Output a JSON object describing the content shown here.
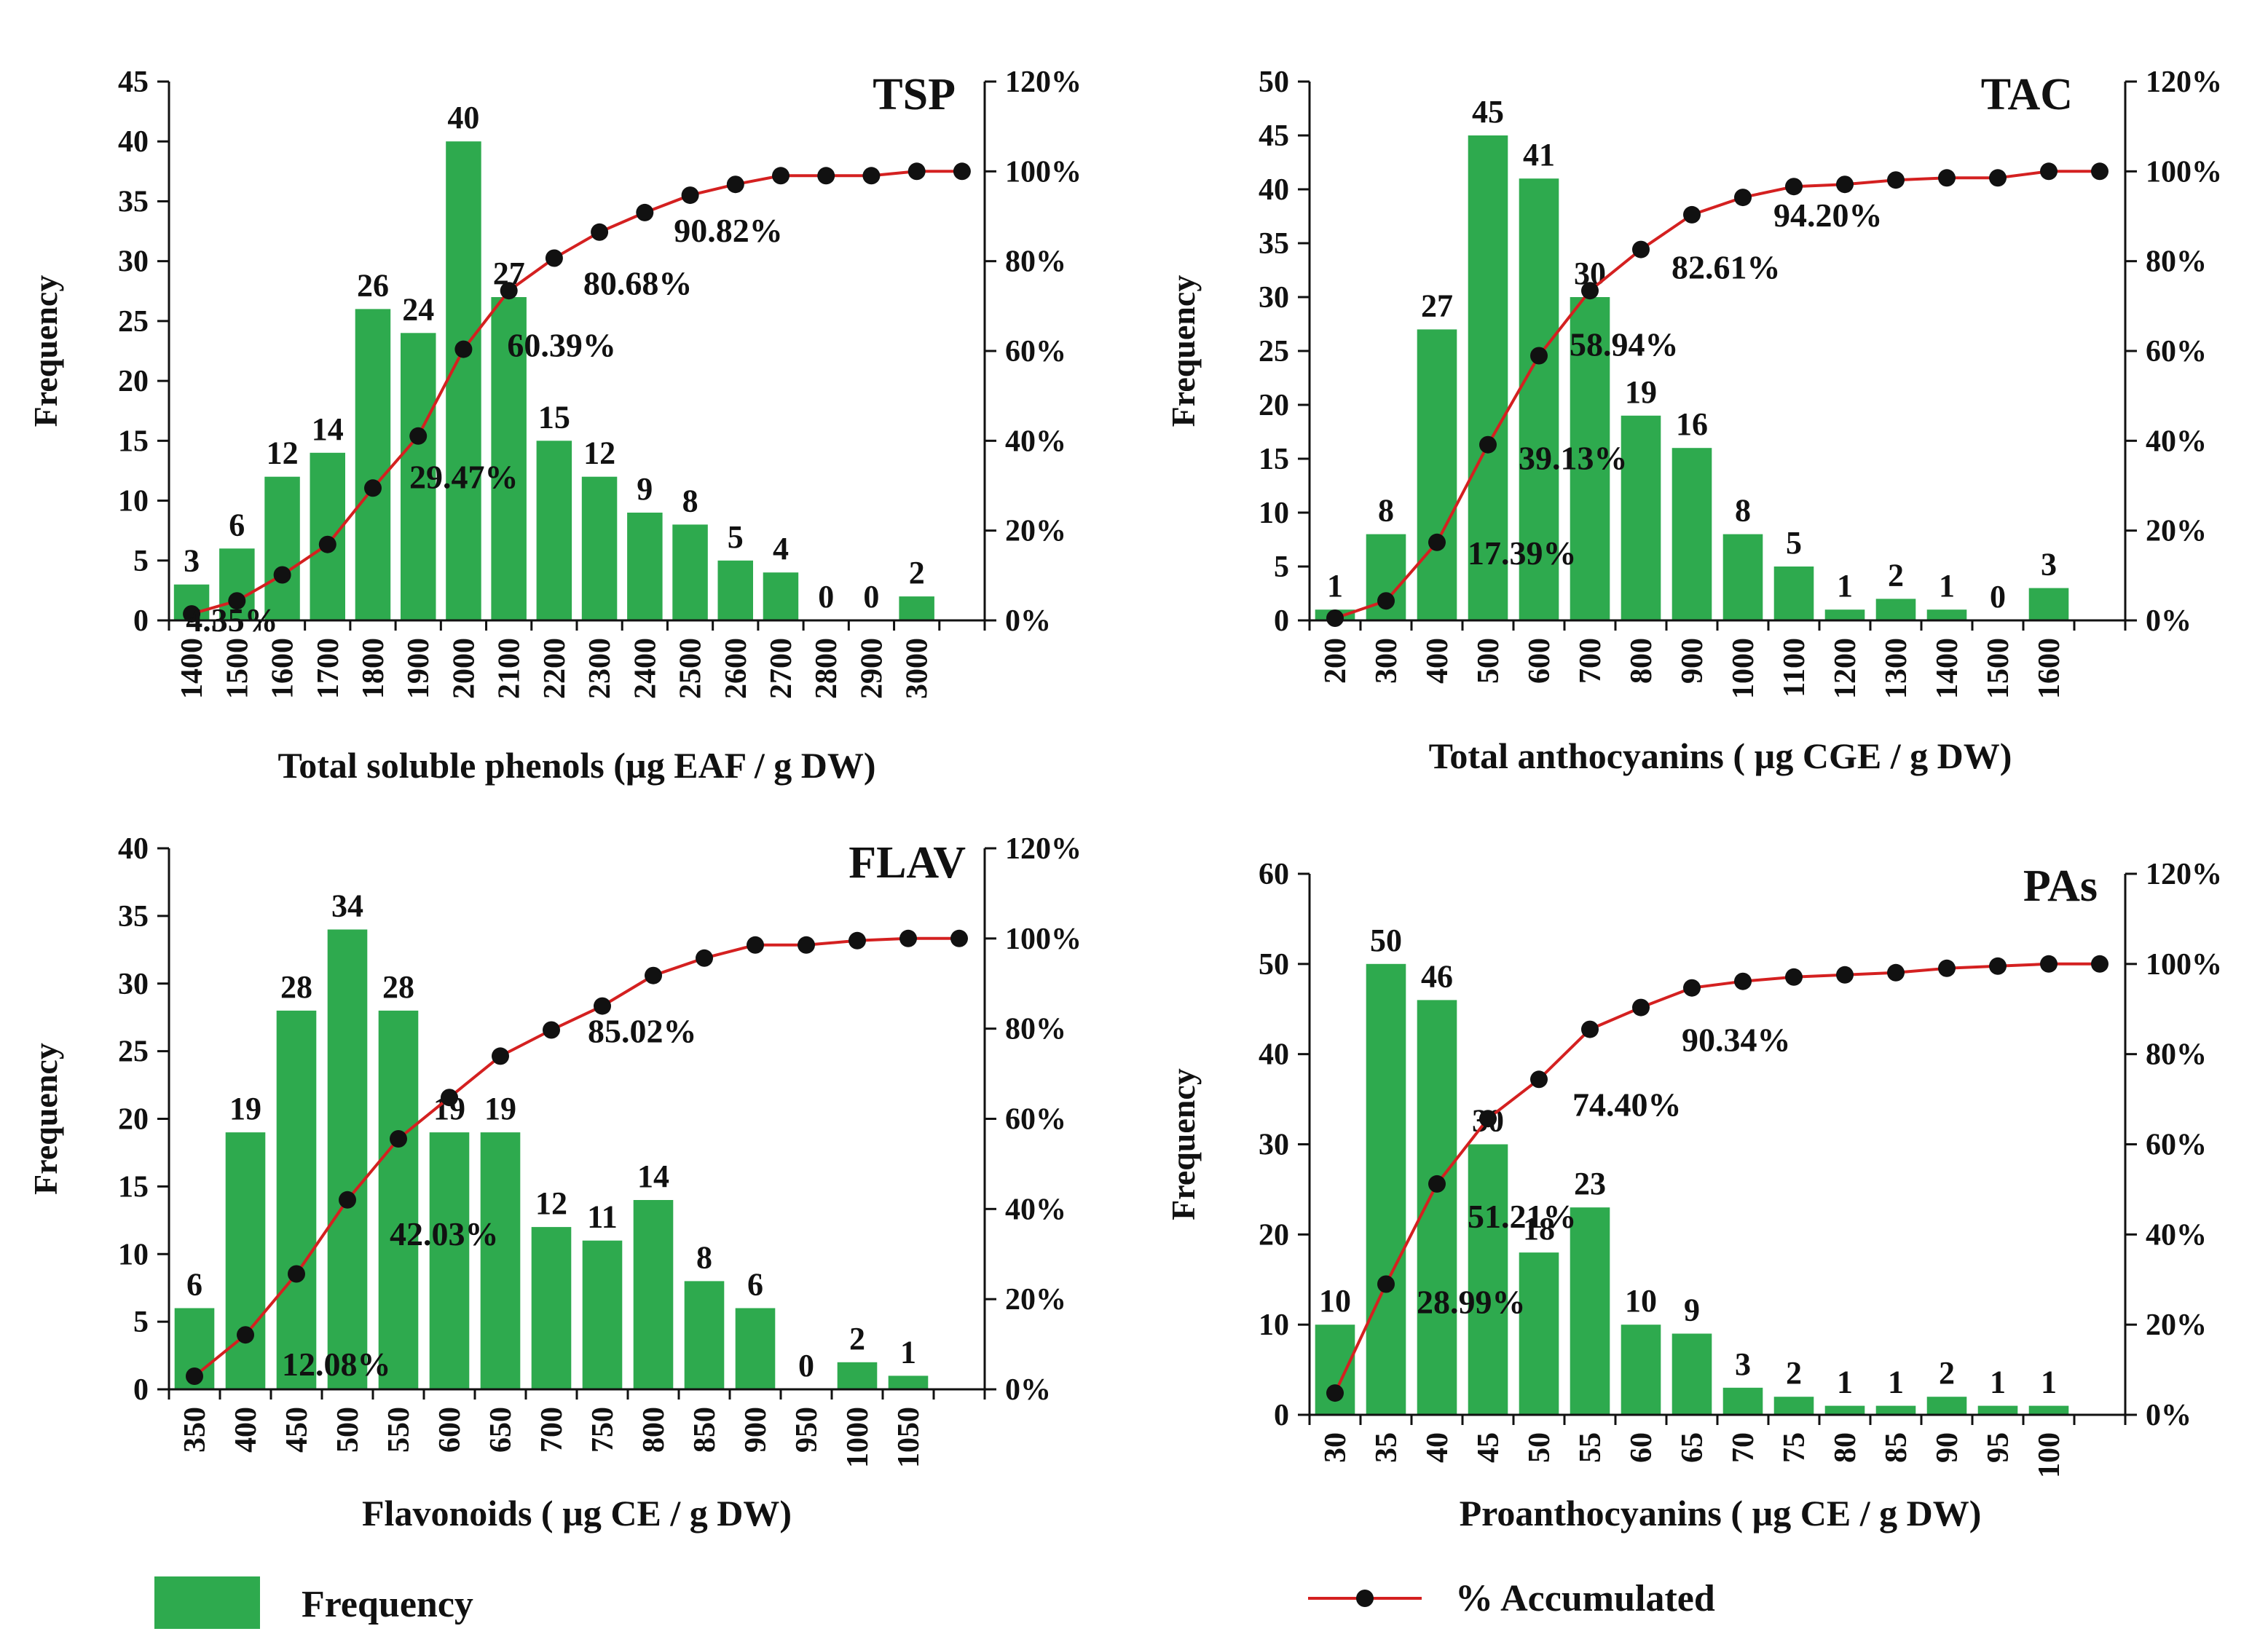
{
  "colors": {
    "bar": "#2EAA4E",
    "line": "#D42020",
    "point": "#111111",
    "text": "#111111"
  },
  "legend": {
    "frequency_label": "Frequency",
    "accumulated_label": "% Accumulated"
  },
  "chart_data": [
    {
      "id": "tsp",
      "type": "bar",
      "title": "TSP",
      "xlabel": "Total soluble phenols (µg  EAF / g DW)",
      "ylabel": "Frequency",
      "ylim": [
        0,
        45
      ],
      "yticks": [
        "0",
        "5",
        "10",
        "15",
        "20",
        "25",
        "30",
        "35",
        "40",
        "45"
      ],
      "y2ticks": [
        "0%",
        "20%",
        "40%",
        "60%",
        "80%",
        "100%",
        "120%"
      ],
      "categories": [
        "1400",
        "1500",
        "1600",
        "1700",
        "1800",
        "1900",
        "2000",
        "2100",
        "2200",
        "2300",
        "2400",
        "2500",
        "2600",
        "2700",
        "2800",
        "2900",
        "3000"
      ],
      "values": [
        3,
        6,
        12,
        14,
        26,
        24,
        40,
        27,
        15,
        12,
        9,
        8,
        5,
        4,
        0,
        0,
        2
      ],
      "cumulative_percent": [
        1.45,
        4.35,
        10.14,
        16.91,
        29.47,
        41.06,
        60.39,
        73.43,
        80.68,
        86.47,
        90.82,
        94.69,
        97.1,
        99.03,
        99.03,
        99.03,
        100,
        100
      ],
      "cumulative_labels": [
        {
          "index": 1,
          "text": "4.35%"
        },
        {
          "index": 4,
          "text": "29.47%"
        },
        {
          "index": 6,
          "text": "60.39%"
        },
        {
          "index": 8,
          "text": "80.68%"
        },
        {
          "index": 10,
          "text": "90.82%"
        }
      ]
    },
    {
      "id": "tac",
      "type": "bar",
      "title": "TAC",
      "xlabel": "Total anthocyanins ( µg CGE / g DW)",
      "ylabel": "Frequency",
      "ylim": [
        0,
        50
      ],
      "yticks": [
        "0",
        "5",
        "10",
        "15",
        "20",
        "25",
        "30",
        "35",
        "40",
        "45",
        "50"
      ],
      "y2ticks": [
        "0%",
        "20%",
        "40%",
        "60%",
        "80%",
        "100%",
        "120%"
      ],
      "categories": [
        "200",
        "300",
        "400",
        "500",
        "600",
        "700",
        "800",
        "900",
        "1000",
        "1100",
        "1200",
        "1300",
        "1400",
        "1500",
        "1600"
      ],
      "values": [
        1,
        8,
        27,
        45,
        41,
        30,
        19,
        16,
        8,
        5,
        1,
        2,
        1,
        0,
        3
      ],
      "cumulative_percent": [
        0.48,
        4.35,
        17.39,
        39.13,
        58.94,
        73.43,
        82.61,
        90.34,
        94.2,
        96.62,
        97.1,
        98.07,
        98.55,
        98.55,
        100,
        100
      ],
      "cumulative_labels": [
        {
          "index": 2,
          "text": "17.39%"
        },
        {
          "index": 3,
          "text": "39.13%"
        },
        {
          "index": 4,
          "text": "58.94%"
        },
        {
          "index": 6,
          "text": "82.61%"
        },
        {
          "index": 8,
          "text": "94.20%"
        }
      ]
    },
    {
      "id": "flav",
      "type": "bar",
      "title": "FLAV",
      "xlabel": "Flavonoids ( µg CE / g DW)",
      "ylabel": "Frequency",
      "ylim": [
        0,
        40
      ],
      "yticks": [
        "0",
        "5",
        "10",
        "15",
        "20",
        "25",
        "30",
        "35",
        "40"
      ],
      "y2ticks": [
        "0%",
        "20%",
        "40%",
        "60%",
        "80%",
        "100%",
        "120%"
      ],
      "categories": [
        "350",
        "400",
        "450",
        "500",
        "550",
        "600",
        "650",
        "700",
        "750",
        "800",
        "850",
        "900",
        "950",
        "1000",
        "1050"
      ],
      "values": [
        6,
        19,
        28,
        34,
        28,
        19,
        19,
        12,
        11,
        14,
        8,
        6,
        0,
        2,
        1
      ],
      "cumulative_percent": [
        2.9,
        12.08,
        25.6,
        42.03,
        55.56,
        64.73,
        73.91,
        79.71,
        85.02,
        91.79,
        95.65,
        98.55,
        98.55,
        99.52,
        100,
        100
      ],
      "cumulative_labels": [
        {
          "index": 1,
          "text": "12.08%"
        },
        {
          "index": 3,
          "text": "42.03%"
        },
        {
          "index": 8,
          "text": "85.02%"
        }
      ]
    },
    {
      "id": "pas",
      "type": "bar",
      "title": "PAs",
      "xlabel": "Proanthocyanins ( µg  CE / g DW)",
      "ylabel": "Frequency",
      "ylim": [
        0,
        60
      ],
      "yticks": [
        "0",
        "10",
        "20",
        "30",
        "40",
        "50",
        "60"
      ],
      "y2ticks": [
        "0%",
        "20%",
        "40%",
        "60%",
        "80%",
        "100%",
        "120%"
      ],
      "categories": [
        "30",
        "35",
        "40",
        "45",
        "50",
        "55",
        "60",
        "65",
        "70",
        "75",
        "80",
        "85",
        "90",
        "95",
        "100"
      ],
      "values": [
        10,
        50,
        46,
        30,
        18,
        23,
        10,
        9,
        3,
        2,
        1,
        1,
        2,
        1,
        1
      ],
      "cumulative_percent": [
        4.83,
        28.99,
        51.21,
        65.7,
        74.4,
        85.51,
        90.34,
        94.69,
        96.14,
        97.1,
        97.58,
        98.07,
        99.03,
        99.52,
        100,
        100
      ],
      "cumulative_labels": [
        {
          "index": 1,
          "text": "28.99%"
        },
        {
          "index": 2,
          "text": "51.21%"
        },
        {
          "index": 4,
          "text": "74.40%"
        },
        {
          "index": 6,
          "text": "90.34%"
        }
      ]
    }
  ]
}
